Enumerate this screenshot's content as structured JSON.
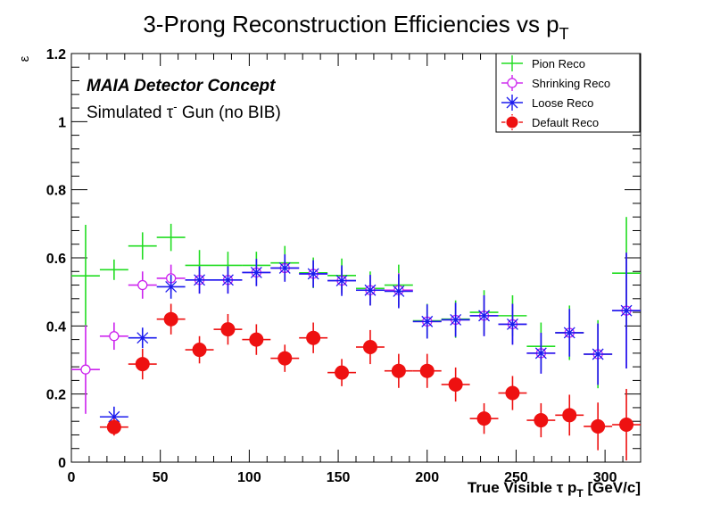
{
  "chart_data": {
    "type": "scatter",
    "title": "3-Prong Reconstruction Efficiencies vs p",
    "title_subscript": "T",
    "xlabel_main": "True Visible τ p",
    "xlabel_sub": "T",
    "xlabel_units": " [GeV/c]",
    "ylabel": "ε",
    "xlim": [
      0,
      320
    ],
    "ylim": [
      0,
      1.2
    ],
    "x_ticks": [
      0,
      50,
      100,
      150,
      200,
      250,
      300
    ],
    "x_tick_labels": [
      "0",
      "50",
      "100",
      "150",
      "200",
      "250",
      "300"
    ],
    "y_ticks": [
      0,
      0.2,
      0.4,
      0.6,
      0.8,
      1,
      1.2
    ],
    "y_tick_labels": [
      "0",
      "0.2",
      "0.4",
      "0.6",
      "0.8",
      "1",
      "1.2"
    ],
    "annotation_bold": "MAIA Detector Concept",
    "annotation_main": "Simulated τ",
    "annotation_sup": "-",
    "annotation_rest": " Gun (no BIB)",
    "legend_position": "top-right",
    "series": [
      {
        "name": "Pion Reco",
        "marker": "cross",
        "color": "#22dd22",
        "x": [
          8,
          24,
          40,
          56,
          72,
          88,
          104,
          120,
          136,
          152,
          168,
          184,
          200,
          216,
          232,
          248,
          264,
          280,
          296,
          312
        ],
        "y": [
          0.547,
          0.565,
          0.635,
          0.66,
          0.578,
          0.578,
          0.578,
          0.585,
          0.556,
          0.548,
          0.51,
          0.52,
          0.415,
          0.42,
          0.44,
          0.43,
          0.34,
          0.38,
          0.317,
          0.555
        ],
        "yerr": [
          0.15,
          0.03,
          0.04,
          0.04,
          0.045,
          0.04,
          0.04,
          0.05,
          0.045,
          0.05,
          0.05,
          0.06,
          0.05,
          0.055,
          0.065,
          0.06,
          0.07,
          0.08,
          0.1,
          0.165
        ]
      },
      {
        "name": "Shrinking Reco",
        "marker": "open-circle",
        "color": "#cc22ee",
        "x": [
          8,
          24,
          40,
          56,
          72,
          88,
          104,
          120,
          136,
          152,
          168,
          184,
          200,
          216,
          232,
          248,
          264,
          280,
          296,
          312
        ],
        "y": [
          0.272,
          0.37,
          0.52,
          0.54,
          0.535,
          0.535,
          0.557,
          0.57,
          0.553,
          0.533,
          0.505,
          0.505,
          0.413,
          0.418,
          0.43,
          0.405,
          0.32,
          0.38,
          0.317,
          0.445
        ],
        "yerr": [
          0.13,
          0.04,
          0.04,
          0.04,
          0.04,
          0.04,
          0.04,
          0.04,
          0.04,
          0.04,
          0.045,
          0.05,
          0.05,
          0.05,
          0.06,
          0.06,
          0.06,
          0.07,
          0.09,
          0.17
        ]
      },
      {
        "name": "Loose Reco",
        "marker": "x",
        "color": "#1a1aee",
        "x": [
          24,
          40,
          56,
          72,
          88,
          104,
          120,
          136,
          152,
          168,
          184,
          200,
          216,
          232,
          248,
          264,
          280,
          296,
          312
        ],
        "y": [
          0.133,
          0.365,
          0.515,
          0.535,
          0.535,
          0.557,
          0.57,
          0.553,
          0.533,
          0.505,
          0.502,
          0.413,
          0.418,
          0.43,
          0.405,
          0.32,
          0.38,
          0.317,
          0.445
        ],
        "yerr": [
          0.03,
          0.03,
          0.035,
          0.04,
          0.04,
          0.04,
          0.04,
          0.04,
          0.045,
          0.045,
          0.05,
          0.05,
          0.05,
          0.06,
          0.06,
          0.06,
          0.07,
          0.09,
          0.17
        ]
      },
      {
        "name": "Default Reco",
        "marker": "filled-circle",
        "color": "#ee1111",
        "x": [
          24,
          40,
          56,
          72,
          88,
          104,
          120,
          136,
          152,
          168,
          184,
          200,
          216,
          232,
          248,
          264,
          280,
          296,
          312
        ],
        "y": [
          0.103,
          0.288,
          0.42,
          0.33,
          0.39,
          0.36,
          0.305,
          0.365,
          0.263,
          0.338,
          0.268,
          0.268,
          0.228,
          0.128,
          0.203,
          0.123,
          0.138,
          0.105,
          0.11
        ],
        "yerr": [
          0.025,
          0.045,
          0.045,
          0.04,
          0.045,
          0.045,
          0.04,
          0.045,
          0.04,
          0.05,
          0.05,
          0.05,
          0.05,
          0.045,
          0.05,
          0.05,
          0.06,
          0.07,
          0.105
        ]
      }
    ]
  }
}
